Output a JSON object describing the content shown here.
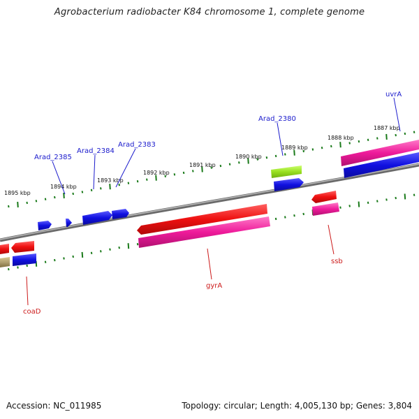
{
  "title": "Agrobacterium radiobacter K84 chromosome 1, complete genome",
  "footer": {
    "accession": "Accession: NC_011985",
    "summary": "Topology: circular; Length: 4,005,130 bp; Genes: 3,804"
  },
  "scale_labels": [
    "1895 kbp",
    "1894 kbp",
    "1893 kbp",
    "1892 kbp",
    "1891 kbp",
    "1890 kbp",
    "1889 kbp",
    "1888 kbp",
    "1887 kbp"
  ],
  "gene_labels": {
    "top": [
      "Arad_2385",
      "Arad_2384",
      "Arad_2383",
      "Arad_2380",
      "uvrA"
    ],
    "bottom": [
      "coaD",
      "gyrA",
      "ssb"
    ]
  },
  "colors": {
    "label_top": "#1a1acc",
    "label_bottom": "#cc1a1a",
    "backbone": "#808080",
    "tick": "#1a7a1a",
    "cds_blue": "#1010e0",
    "cds_red": "#ee1010",
    "cds_pink": "#ee1a9a",
    "cds_green": "#99e020",
    "cds_khaki": "#b0a070"
  }
}
